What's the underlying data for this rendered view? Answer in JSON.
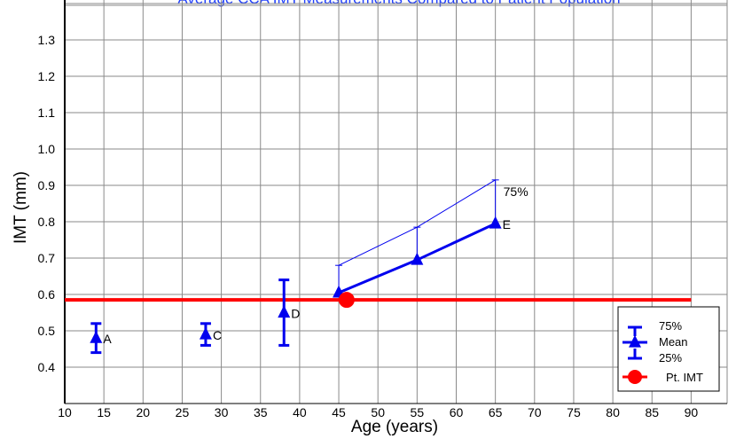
{
  "chart_data": {
    "type": "scatter",
    "title": "Average CCA IMT Measurements Compared to Patient Population",
    "xlabel": "Age (years)",
    "ylabel": "IMT (mm)",
    "xlim": [
      10,
      90
    ],
    "ylim": [
      0.35,
      1.42
    ],
    "x_ticks": [
      "10",
      "15",
      "20",
      "25",
      "30",
      "35",
      "40",
      "45",
      "50",
      "55",
      "60",
      "65",
      "70",
      "75",
      "80",
      "85",
      "90"
    ],
    "y_ticks": [
      "0.4",
      "0.5",
      "0.6",
      "0.7",
      "0.8",
      "0.9",
      "1.0",
      "1.1",
      "1.2",
      "1.3"
    ],
    "grid": true,
    "reference_groups": [
      {
        "label": "A",
        "age": 14,
        "mean": 0.48,
        "p25": 0.44,
        "p75": 0.52
      },
      {
        "label": "C",
        "age": 28,
        "mean": 0.49,
        "p25": 0.46,
        "p75": 0.52
      },
      {
        "label": "D",
        "age": 38,
        "mean": 0.55,
        "p25": 0.46,
        "p75": 0.64
      }
    ],
    "series_E": {
      "label": "E",
      "points": [
        {
          "age": 45,
          "mean": 0.605,
          "p75": 0.68
        },
        {
          "age": 55,
          "mean": 0.695,
          "p75": 0.785
        },
        {
          "age": 65,
          "mean": 0.795,
          "p75": 0.915
        }
      ],
      "p75_label": "75%"
    },
    "patient": {
      "age": 46,
      "imt": 0.585
    },
    "reference_line": {
      "y": 0.585,
      "x_from": 10,
      "x_to": 90
    },
    "legend": {
      "position": "bottom-right",
      "entries": [
        "75%",
        "Mean",
        "25%",
        "Pt. IMT"
      ]
    },
    "colors": {
      "series": "#0000ee",
      "patient": "#ff0000",
      "grid": "#8a8a8a",
      "title": "#1f3fff"
    }
  }
}
